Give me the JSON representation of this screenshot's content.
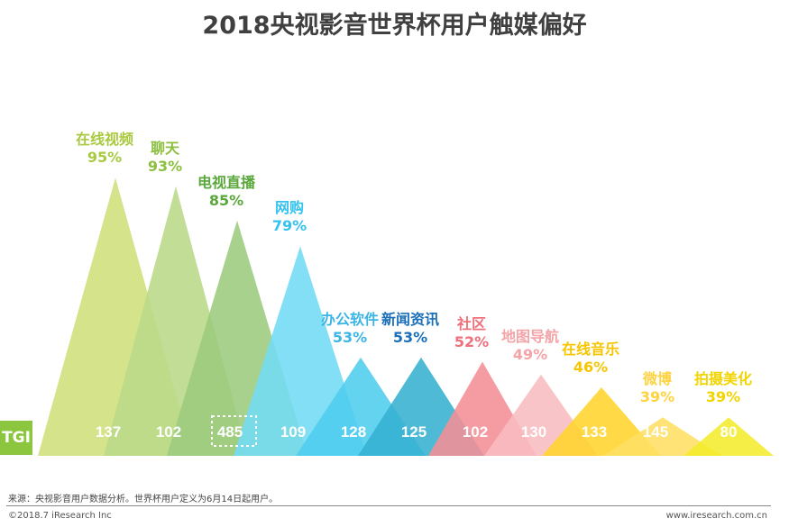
{
  "chart_data": {
    "type": "triangle-bar",
    "title": "2018央视影音世界杯用户触媒偏好",
    "row_label": "TGI",
    "highlighted_category": "电视直播",
    "categories": [
      "在线视频",
      "聊天",
      "电视直播",
      "网购",
      "办公软件",
      "新闻资讯",
      "社区",
      "地图导航",
      "在线音乐",
      "微博",
      "拍摄美化"
    ],
    "penetration_labels": [
      "95%",
      "93%",
      "85%",
      "79%",
      "53%",
      "53%",
      "52%",
      "49%",
      "46%",
      "39%",
      "39%"
    ],
    "values": [
      95,
      93,
      85,
      79,
      53,
      53,
      52,
      49,
      46,
      39,
      39
    ],
    "tgi": [
      137,
      102,
      485,
      109,
      128,
      125,
      102,
      130,
      133,
      145,
      80
    ],
    "fill_colors": [
      "#cfe07a",
      "#b9da88",
      "#9ccb7e",
      "#72dbf5",
      "#4fcdee",
      "#36b0d0",
      "#f48e96",
      "#f8bcc0",
      "#ffd52c",
      "#ffdf63",
      "#f4ec2c"
    ],
    "label_colors": [
      "#a9c940",
      "#8cbf3f",
      "#5aa83c",
      "#35c2ee",
      "#3ab5e6",
      "#1b6fb8",
      "#ef6f7a",
      "#f4a4a8",
      "#f7c500",
      "#ffd340",
      "#f2d500"
    ],
    "tgi_color": "#8cc63f"
  },
  "footer": {
    "source": "来源：央视影音用户数据分析。世界杯用户定义为6月14日起用户。",
    "copyright": "©2018.7 iResearch Inc",
    "website": "www.iresearch.com.cn"
  }
}
